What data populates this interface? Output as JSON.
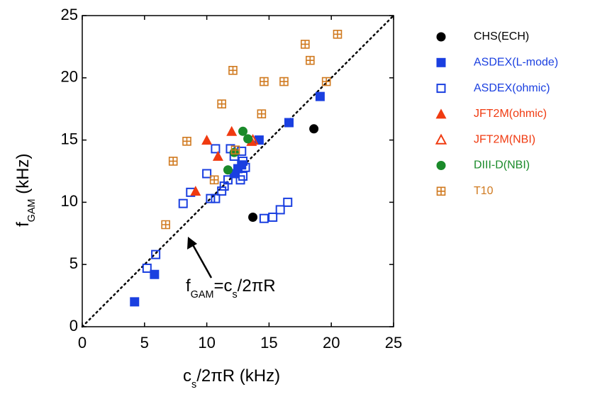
{
  "chart_data": {
    "type": "scatter",
    "xlabel": [
      "c",
      "s",
      "/2πR (kHz)"
    ],
    "ylabel": [
      "f",
      "GAM",
      " (kHz)"
    ],
    "annotation": [
      "f",
      "GAM",
      "=c",
      "s",
      "/2πR"
    ],
    "xlim": [
      0,
      25
    ],
    "ylim": [
      0,
      25
    ],
    "xticks": [
      0,
      5,
      10,
      15,
      20,
      25
    ],
    "yticks": [
      0,
      5,
      10,
      15,
      20,
      25
    ],
    "grid": false,
    "diagonal": true,
    "legend": "right",
    "series": [
      {
        "name": "CHS(ECH)",
        "color": "#000000",
        "marker": "circle",
        "x": [
          18.6,
          13.7
        ],
        "y": [
          15.9,
          8.8
        ]
      },
      {
        "name": "ASDEX(L-mode)",
        "color": "#1a3fe0",
        "marker": "square",
        "x": [
          4.2,
          5.8,
          16.6,
          19.1,
          14.2,
          12.5,
          12.8,
          12.2
        ],
        "y": [
          2.0,
          4.2,
          16.4,
          18.5,
          15.0,
          12.7,
          13.0,
          12.3
        ]
      },
      {
        "name": "ASDEX(ohmic)",
        "color": "#1a3fe0",
        "marker": "square-open",
        "x": [
          5.2,
          5.9,
          8.1,
          8.7,
          10.0,
          10.3,
          10.7,
          11.2,
          11.4,
          11.7,
          10.7,
          11.9,
          12.8,
          13.1,
          12.7,
          12.9,
          12.9,
          14.6,
          15.3,
          15.9,
          16.5,
          12.2
        ],
        "y": [
          4.7,
          5.8,
          9.9,
          10.8,
          12.3,
          10.3,
          10.3,
          10.9,
          11.3,
          11.8,
          14.3,
          14.3,
          14.1,
          12.8,
          11.8,
          12.1,
          13.3,
          8.7,
          8.8,
          9.4,
          10.0,
          13.7
        ]
      },
      {
        "name": "JFT2M(ohmic)",
        "color": "#f03a10",
        "marker": "triangle",
        "x": [
          9.1,
          10.0,
          10.9,
          12.0,
          13.6
        ],
        "y": [
          10.9,
          15.0,
          13.7,
          15.7,
          14.9
        ]
      },
      {
        "name": "JFT2M(NBI)",
        "color": "#f03a10",
        "marker": "triangle-open",
        "x": [
          13.7
        ],
        "y": [
          15.0
        ]
      },
      {
        "name": "DIII-D(NBI)",
        "color": "#1a8a2a",
        "marker": "circle",
        "x": [
          11.7,
          12.2,
          12.9,
          13.3
        ],
        "y": [
          12.6,
          14.0,
          15.7,
          15.1
        ]
      },
      {
        "name": "T10",
        "color": "#d07a20",
        "marker": "boxplus",
        "x": [
          6.7,
          7.3,
          8.4,
          10.6,
          11.2,
          12.1,
          12.3,
          14.6,
          14.4,
          16.2,
          17.9,
          18.3,
          19.6,
          20.5
        ],
        "y": [
          8.2,
          13.3,
          14.9,
          11.8,
          17.9,
          20.6,
          14.2,
          19.7,
          17.1,
          19.7,
          22.7,
          21.4,
          19.7,
          23.5
        ]
      }
    ]
  }
}
